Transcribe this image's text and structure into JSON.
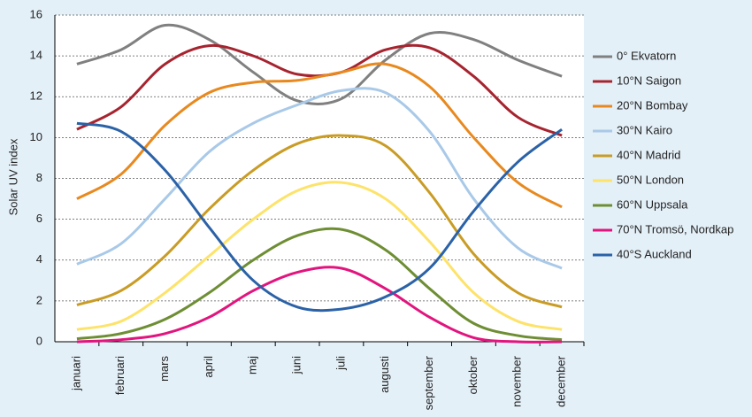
{
  "chart_data": {
    "type": "line",
    "y_label": "Solar UV index",
    "categories": [
      "januari",
      "februari",
      "mars",
      "april",
      "maj",
      "juni",
      "juli",
      "augusti",
      "september",
      "oktober",
      "november",
      "december"
    ],
    "ylim": [
      0,
      16
    ],
    "yticks": [
      0,
      2,
      4,
      6,
      8,
      10,
      12,
      14,
      16
    ],
    "grid": true,
    "legend": "right",
    "series": [
      {
        "name": "0° Ekvatorn",
        "color": "#808080",
        "values": [
          13.6,
          14.3,
          15.5,
          14.8,
          13.2,
          11.8,
          11.9,
          13.8,
          15.1,
          14.8,
          13.8,
          13.0
        ]
      },
      {
        "name": "10°N Saigon",
        "color": "#a6242f",
        "values": [
          10.4,
          11.5,
          13.6,
          14.5,
          14.0,
          13.1,
          13.2,
          14.3,
          14.4,
          13.0,
          11.0,
          10.1
        ]
      },
      {
        "name": "20°N Bombay",
        "color": "#e8891f",
        "values": [
          7.0,
          8.2,
          10.6,
          12.2,
          12.7,
          12.8,
          13.2,
          13.6,
          12.5,
          10.0,
          7.8,
          6.6
        ]
      },
      {
        "name": "30°N Kairo",
        "color": "#a9c9e8",
        "values": [
          3.8,
          4.8,
          7.0,
          9.3,
          10.7,
          11.6,
          12.3,
          12.2,
          10.3,
          7.0,
          4.6,
          3.6
        ]
      },
      {
        "name": "40°N Madrid",
        "color": "#c99c25",
        "values": [
          1.8,
          2.5,
          4.2,
          6.5,
          8.4,
          9.7,
          10.1,
          9.6,
          7.3,
          4.3,
          2.4,
          1.7
        ]
      },
      {
        "name": "50°N London",
        "color": "#fde36a",
        "values": [
          0.6,
          1.0,
          2.4,
          4.2,
          6.0,
          7.4,
          7.8,
          7.0,
          4.9,
          2.4,
          1.0,
          0.6
        ]
      },
      {
        "name": "60°N Uppsala",
        "color": "#6e8e34",
        "values": [
          0.15,
          0.4,
          1.1,
          2.4,
          4.0,
          5.2,
          5.5,
          4.5,
          2.6,
          0.9,
          0.3,
          0.1
        ]
      },
      {
        "name": "70°N Tromsö, Nordkap",
        "color": "#e2147e",
        "values": [
          0,
          0.1,
          0.4,
          1.2,
          2.5,
          3.4,
          3.6,
          2.6,
          1.2,
          0.2,
          0,
          0
        ]
      },
      {
        "name": "40°S Auckland",
        "color": "#2b62a7",
        "values": [
          10.7,
          10.3,
          8.4,
          5.6,
          3.0,
          1.7,
          1.6,
          2.2,
          3.6,
          6.4,
          8.8,
          10.4
        ]
      }
    ]
  }
}
